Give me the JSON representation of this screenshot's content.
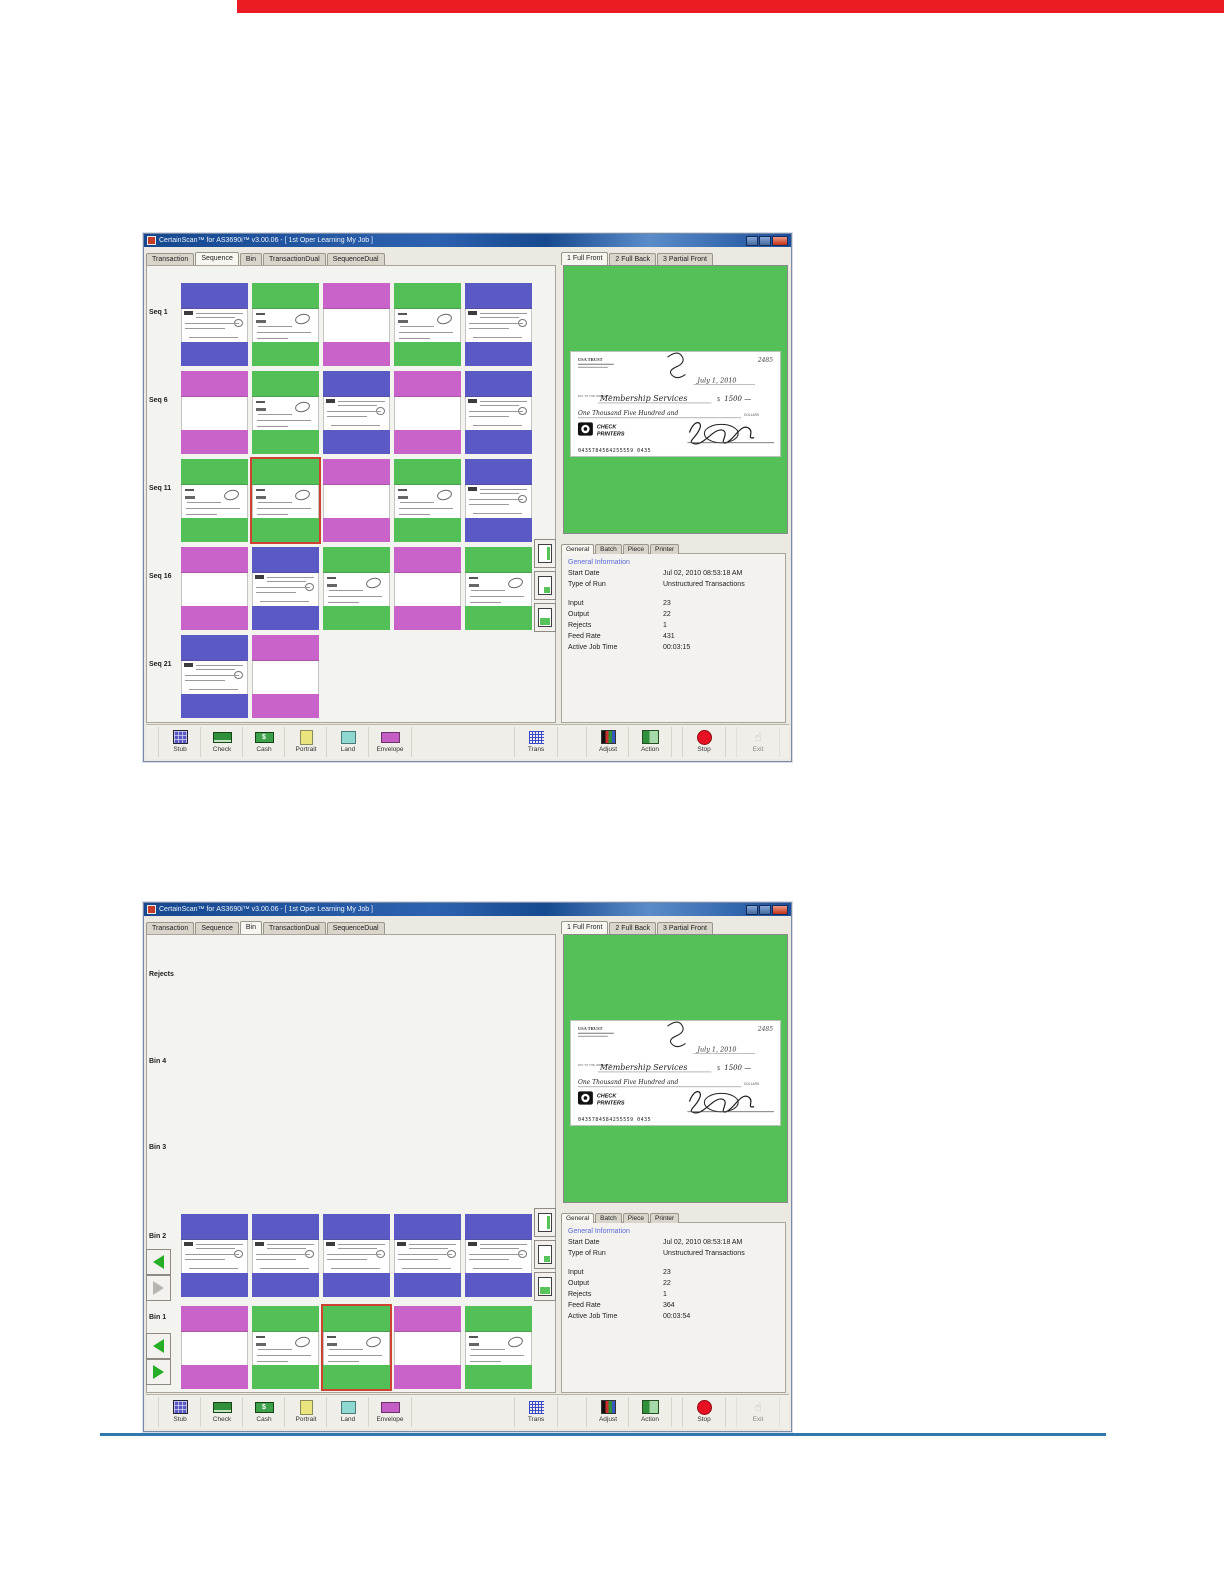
{
  "page": {
    "top_bar_color": "#ec1c24",
    "footer_rule_color": "#2e78ad"
  },
  "colors": {
    "blue": "#5b59c4",
    "green": "#53bf57",
    "magenta": "#c963c9",
    "selection": "#cf4130",
    "preview_bg": "#54c158"
  },
  "window": {
    "title": "CertainScan™ for AS3690i™ v3.00.06 - [ 1st Oper Learning My Job ]",
    "main_tabs": [
      "Transaction",
      "Sequence",
      "Bin",
      "TransactionDual",
      "SequenceDual"
    ],
    "preview_tabs": [
      "1 Full Front",
      "2 Full Back",
      "3 Partial Front"
    ],
    "active_preview_tab": "1 Full Front",
    "info_tabs": [
      "General",
      "Batch",
      "Piece",
      "Printer"
    ],
    "active_info_tab": "General",
    "info_header": "General Information",
    "toolbar": {
      "left": [
        {
          "label": "Stub",
          "icon": "stub"
        },
        {
          "label": "Check",
          "icon": "check"
        },
        {
          "label": "Cash",
          "icon": "cash"
        },
        {
          "label": "Portrait",
          "icon": "port"
        },
        {
          "label": "Land",
          "icon": "land"
        },
        {
          "label": "Envelope",
          "icon": "env"
        }
      ],
      "trans": {
        "label": "Trans",
        "icon": "trans"
      },
      "right": [
        {
          "label": "Adjust",
          "icon": "adjust"
        },
        {
          "label": "Action",
          "icon": "action"
        },
        {
          "label": "Stop",
          "icon": "stop"
        },
        {
          "label": "Exit",
          "icon": "exit",
          "disabled": true
        }
      ]
    }
  },
  "check": {
    "bank_name": "USA TRUST",
    "number": "2485",
    "date": "July 1, 2010",
    "pay_to_label": "PAY TO THE ORDER OF",
    "payee": "Membership Services",
    "amount": "1500 —",
    "amount_words": "One Thousand Five Hundred and",
    "dollars_label": "DOLLARS",
    "logo_line1": "CHECK",
    "logo_line2": "PRINTERS",
    "micr": "0435784584255559  0435"
  },
  "screens": [
    {
      "name": "sequence-view",
      "active_main_tab": "Sequence",
      "rows": [
        {
          "label": "Seq 1",
          "cells": [
            {
              "color": "blue",
              "doc": "stub"
            },
            {
              "color": "green",
              "doc": "check"
            },
            {
              "color": "magenta",
              "doc": "blank"
            },
            {
              "color": "green",
              "doc": "check"
            },
            {
              "color": "blue",
              "doc": "stub"
            }
          ]
        },
        {
          "label": "Seq 6",
          "cells": [
            {
              "color": "magenta",
              "doc": "blank"
            },
            {
              "color": "green",
              "doc": "check"
            },
            {
              "color": "blue",
              "doc": "stub"
            },
            {
              "color": "magenta",
              "doc": "blank"
            },
            {
              "color": "blue",
              "doc": "stub"
            }
          ]
        },
        {
          "label": "Seq 11",
          "cells": [
            {
              "color": "green",
              "doc": "check"
            },
            {
              "color": "green",
              "doc": "check",
              "sel": true
            },
            {
              "color": "magenta",
              "doc": "blank"
            },
            {
              "color": "green",
              "doc": "check"
            },
            {
              "color": "blue",
              "doc": "stub"
            }
          ]
        },
        {
          "label": "Seq 16",
          "cells": [
            {
              "color": "magenta",
              "doc": "blank"
            },
            {
              "color": "blue",
              "doc": "stub"
            },
            {
              "color": "green",
              "doc": "check"
            },
            {
              "color": "magenta",
              "doc": "blank"
            },
            {
              "color": "green",
              "doc": "check"
            }
          ]
        },
        {
          "label": "Seq 21",
          "cells": [
            {
              "color": "blue",
              "doc": "stub"
            },
            {
              "color": "magenta",
              "doc": "blank"
            }
          ]
        }
      ],
      "info_rows": [
        {
          "label": "Start Date",
          "value": "Jul 02, 2010 08:53:18 AM"
        },
        {
          "label": "Type of Run",
          "value": "Unstructured Transactions"
        },
        {
          "label": "",
          "value": ""
        },
        {
          "label": "Input",
          "value": "23"
        },
        {
          "label": "Output",
          "value": "22"
        },
        {
          "label": "Rejects",
          "value": "1"
        },
        {
          "label": "Feed Rate",
          "value": "431"
        },
        {
          "label": "Active Job Time",
          "value": "00:03:15"
        }
      ]
    },
    {
      "name": "bin-view",
      "active_main_tab": "Bin",
      "rows": [
        {
          "label": "Rejects",
          "cells": []
        },
        {
          "label": "Bin 4",
          "cells": []
        },
        {
          "label": "Bin 3",
          "cells": []
        },
        {
          "label": "Bin 2",
          "cells": [
            {
              "color": "blue",
              "doc": "stub"
            },
            {
              "color": "blue",
              "doc": "stub"
            },
            {
              "color": "blue",
              "doc": "stub"
            },
            {
              "color": "blue",
              "doc": "stub"
            },
            {
              "color": "blue",
              "doc": "stub"
            }
          ],
          "arrows": [
            {
              "dir": "left",
              "on": true
            },
            {
              "dir": "right",
              "on": false
            }
          ]
        },
        {
          "label": "Bin 1",
          "cells": [
            {
              "color": "magenta",
              "doc": "blank"
            },
            {
              "color": "green",
              "doc": "check"
            },
            {
              "color": "green",
              "doc": "check",
              "sel": true
            },
            {
              "color": "magenta",
              "doc": "blank"
            },
            {
              "color": "green",
              "doc": "check"
            }
          ],
          "arrows": [
            {
              "dir": "left",
              "on": true
            },
            {
              "dir": "right",
              "on": true
            }
          ]
        }
      ],
      "info_rows": [
        {
          "label": "Start Date",
          "value": "Jul 02, 2010 08:53:18 AM"
        },
        {
          "label": "Type of Run",
          "value": "Unstructured Transactions"
        },
        {
          "label": "",
          "value": ""
        },
        {
          "label": "Input",
          "value": "23"
        },
        {
          "label": "Output",
          "value": "22"
        },
        {
          "label": "Rejects",
          "value": "1"
        },
        {
          "label": "Feed Rate",
          "value": "364"
        },
        {
          "label": "Active Job Time",
          "value": "00:03:54"
        }
      ]
    }
  ]
}
